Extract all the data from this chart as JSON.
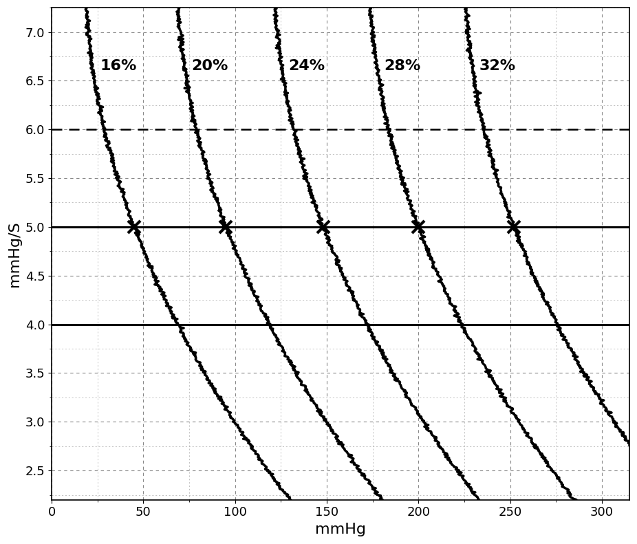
{
  "xlabel": "mmHg",
  "ylabel": "mmHg/S",
  "xlim": [
    0,
    315
  ],
  "ylim": [
    2.2,
    7.25
  ],
  "yticks": [
    2.5,
    3.0,
    3.5,
    4.0,
    4.5,
    5.0,
    5.5,
    6.0,
    6.5,
    7.0
  ],
  "xticks": [
    0,
    50,
    100,
    150,
    200,
    250,
    300
  ],
  "duty_labels": [
    "16%",
    "20%",
    "24%",
    "28%",
    "32%"
  ],
  "hline_solid": [
    5.0,
    4.0
  ],
  "hline_dashed": 6.0,
  "cross_y": 5.0,
  "cross_x": [
    45,
    95,
    148,
    200,
    252
  ],
  "curve_color": "#000000",
  "hline_color": "#000000",
  "background_color": "#ffffff",
  "label_fontsize": 16,
  "tick_fontsize": 13,
  "duty_label_fontsize": 16
}
